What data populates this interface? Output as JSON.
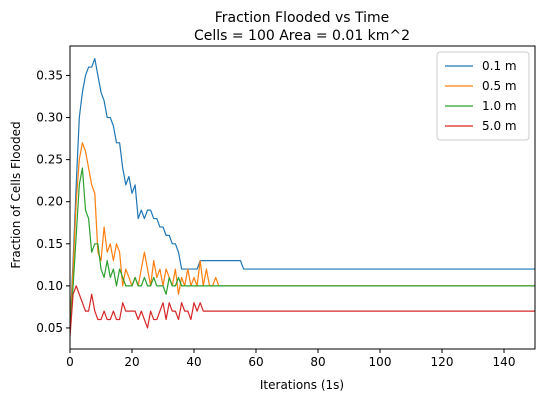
{
  "chart_data": {
    "type": "line",
    "title": "Fraction Flooded vs Time",
    "subtitle": "Cells = 100 Area = 0.01 km^2",
    "xlabel": "Iterations (1s)",
    "ylabel": "Fraction of Cells Flooded",
    "xlim": [
      0,
      150
    ],
    "ylim": [
      0.025,
      0.385
    ],
    "xticks": [
      0,
      20,
      40,
      60,
      80,
      100,
      120,
      140
    ],
    "yticks": [
      0.05,
      0.1,
      0.15,
      0.2,
      0.25,
      0.3,
      0.35
    ],
    "ytick_labels": [
      "0.05",
      "0.10",
      "0.15",
      "0.20",
      "0.25",
      "0.30",
      "0.35"
    ],
    "grid": false,
    "legend_position": "top-right",
    "series": [
      {
        "name": "0.1 m",
        "color": "#1f77b4",
        "x": [
          0,
          1,
          2,
          3,
          4,
          5,
          6,
          7,
          8,
          9,
          10,
          11,
          12,
          13,
          14,
          15,
          16,
          17,
          18,
          19,
          20,
          21,
          22,
          23,
          24,
          25,
          26,
          27,
          28,
          29,
          30,
          31,
          32,
          33,
          34,
          35,
          36,
          37,
          38,
          39,
          40,
          41,
          42,
          43,
          44,
          55,
          56,
          150
        ],
        "y": [
          0.05,
          0.13,
          0.22,
          0.3,
          0.33,
          0.35,
          0.36,
          0.36,
          0.37,
          0.35,
          0.33,
          0.32,
          0.3,
          0.3,
          0.29,
          0.27,
          0.27,
          0.24,
          0.22,
          0.23,
          0.21,
          0.22,
          0.18,
          0.19,
          0.18,
          0.19,
          0.19,
          0.18,
          0.18,
          0.17,
          0.17,
          0.16,
          0.16,
          0.15,
          0.15,
          0.14,
          0.12,
          0.12,
          0.12,
          0.12,
          0.12,
          0.12,
          0.13,
          0.13,
          0.13,
          0.13,
          0.12,
          0.12
        ]
      },
      {
        "name": "0.5 m",
        "color": "#ff7f0e",
        "x": [
          0,
          1,
          2,
          3,
          4,
          5,
          6,
          7,
          8,
          9,
          10,
          11,
          12,
          13,
          14,
          15,
          16,
          17,
          18,
          19,
          20,
          21,
          22,
          23,
          24,
          25,
          26,
          27,
          28,
          29,
          30,
          31,
          32,
          33,
          34,
          35,
          36,
          37,
          38,
          39,
          40,
          41,
          42,
          43,
          44,
          45,
          46,
          47,
          48,
          150
        ],
        "y": [
          0.05,
          0.12,
          0.2,
          0.25,
          0.27,
          0.26,
          0.24,
          0.22,
          0.21,
          0.14,
          0.13,
          0.17,
          0.14,
          0.15,
          0.13,
          0.15,
          0.14,
          0.1,
          0.12,
          0.11,
          0.1,
          0.11,
          0.1,
          0.12,
          0.14,
          0.12,
          0.1,
          0.13,
          0.11,
          0.12,
          0.1,
          0.12,
          0.11,
          0.1,
          0.12,
          0.09,
          0.11,
          0.1,
          0.12,
          0.1,
          0.11,
          0.1,
          0.13,
          0.1,
          0.12,
          0.1,
          0.1,
          0.11,
          0.1,
          0.1
        ]
      },
      {
        "name": "1.0 m",
        "color": "#2ca02c",
        "x": [
          0,
          1,
          2,
          3,
          4,
          5,
          6,
          7,
          8,
          9,
          10,
          11,
          12,
          13,
          14,
          15,
          16,
          17,
          18,
          19,
          20,
          21,
          22,
          23,
          24,
          25,
          26,
          27,
          28,
          29,
          30,
          31,
          32,
          33,
          34,
          35,
          36,
          37,
          38,
          39,
          40,
          150
        ],
        "y": [
          0.05,
          0.1,
          0.16,
          0.22,
          0.24,
          0.19,
          0.18,
          0.14,
          0.15,
          0.15,
          0.12,
          0.11,
          0.13,
          0.11,
          0.12,
          0.1,
          0.12,
          0.11,
          0.1,
          0.1,
          0.1,
          0.11,
          0.1,
          0.1,
          0.11,
          0.1,
          0.1,
          0.11,
          0.1,
          0.1,
          0.1,
          0.09,
          0.11,
          0.1,
          0.1,
          0.11,
          0.1,
          0.1,
          0.1,
          0.1,
          0.1,
          0.1
        ]
      },
      {
        "name": "5.0 m",
        "color": "#d62728",
        "x": [
          0,
          1,
          2,
          3,
          4,
          5,
          6,
          7,
          8,
          9,
          10,
          11,
          12,
          13,
          14,
          15,
          16,
          17,
          18,
          19,
          20,
          21,
          22,
          23,
          24,
          25,
          26,
          27,
          28,
          29,
          30,
          31,
          32,
          33,
          34,
          35,
          36,
          37,
          38,
          39,
          40,
          41,
          42,
          43,
          150
        ],
        "y": [
          0.04,
          0.09,
          0.1,
          0.09,
          0.08,
          0.07,
          0.07,
          0.09,
          0.07,
          0.06,
          0.06,
          0.07,
          0.06,
          0.06,
          0.07,
          0.06,
          0.06,
          0.08,
          0.07,
          0.07,
          0.07,
          0.07,
          0.06,
          0.07,
          0.06,
          0.05,
          0.07,
          0.06,
          0.06,
          0.07,
          0.08,
          0.06,
          0.08,
          0.07,
          0.07,
          0.06,
          0.08,
          0.07,
          0.07,
          0.06,
          0.08,
          0.07,
          0.08,
          0.07,
          0.07
        ]
      }
    ]
  }
}
